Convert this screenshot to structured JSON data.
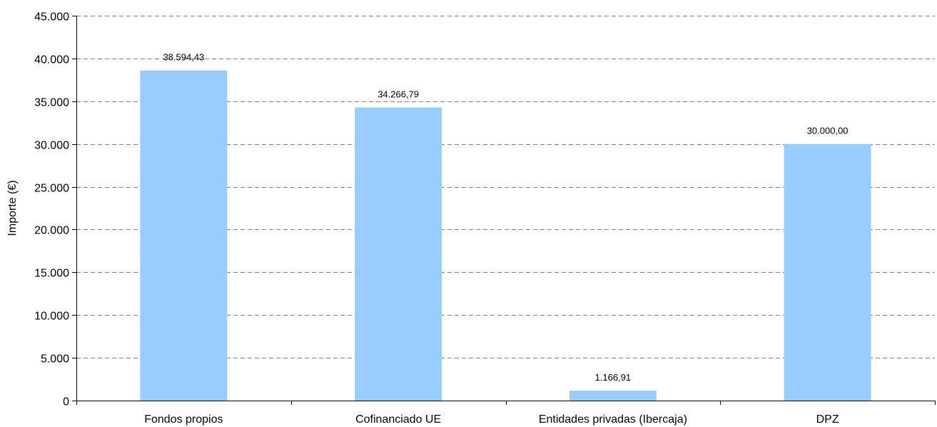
{
  "chart_data": {
    "type": "bar",
    "title": "",
    "xlabel": "",
    "ylabel": "Importe (€)",
    "ylim": [
      0,
      45000
    ],
    "ytick_step": 5000,
    "ytick_labels": [
      "0",
      "5.000",
      "10.000",
      "15.000",
      "20.000",
      "25.000",
      "30.000",
      "35.000",
      "40.000",
      "45.000"
    ],
    "grid": true,
    "grid_style": "dashed",
    "legend": "none",
    "bar_color": "#99CCFF",
    "categories": [
      "Fondos propios",
      "Cofinanciado UE",
      "Entidades privadas (Ibercaja)",
      "DPZ"
    ],
    "values": [
      38594.43,
      34266.79,
      1166.91,
      30000.0
    ],
    "data_labels": [
      "38.594,43",
      "34.266,79",
      "1.166,91",
      "30.000,00"
    ]
  }
}
